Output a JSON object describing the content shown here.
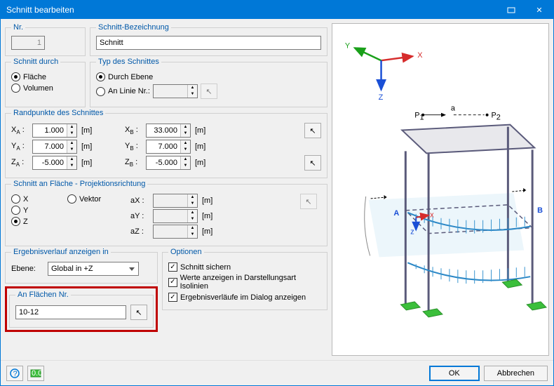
{
  "titlebar": {
    "title": "Schnitt bearbeiten",
    "close": "✕"
  },
  "nr": {
    "legend": "Nr.",
    "value": "1"
  },
  "bez": {
    "legend": "Schnitt-Bezeichnung",
    "value": "Schnitt"
  },
  "schnitt_durch": {
    "legend": "Schnitt durch",
    "opts": [
      {
        "label": "Fläche",
        "sel": true
      },
      {
        "label": "Volumen",
        "sel": false
      }
    ]
  },
  "typ": {
    "legend": "Typ des Schnittes",
    "opts": [
      {
        "label": "Durch Ebene",
        "sel": true
      },
      {
        "label": "An Linie Nr.:",
        "sel": false
      }
    ],
    "linie_value": ""
  },
  "randpunkte": {
    "legend": "Randpunkte des Schnittes",
    "a": [
      {
        "lbl": "X",
        "sub": "A",
        "val": "1.000",
        "unit": "[m]"
      },
      {
        "lbl": "Y",
        "sub": "A",
        "val": "7.000",
        "unit": "[m]"
      },
      {
        "lbl": "Z",
        "sub": "A",
        "val": "-5.000",
        "unit": "[m]"
      }
    ],
    "b": [
      {
        "lbl": "X",
        "sub": "B",
        "val": "33.000",
        "unit": "[m]"
      },
      {
        "lbl": "Y",
        "sub": "B",
        "val": "7.000",
        "unit": "[m]"
      },
      {
        "lbl": "Z",
        "sub": "B",
        "val": "-5.000",
        "unit": "[m]"
      }
    ]
  },
  "proj": {
    "legend": "Schnitt an Fläche - Projektionsrichtung",
    "xyz": [
      {
        "label": "X",
        "sel": false
      },
      {
        "label": "Y",
        "sel": false
      },
      {
        "label": "Z",
        "sel": true
      }
    ],
    "vektor": {
      "label": "Vektor",
      "sel": false
    },
    "axes": [
      {
        "lbl": "aX :",
        "unit": "[m]"
      },
      {
        "lbl": "aY :",
        "unit": "[m]"
      },
      {
        "lbl": "aZ :",
        "unit": "[m]"
      }
    ]
  },
  "erg": {
    "legend": "Ergebnisverlauf anzeigen in",
    "label": "Ebene:",
    "value": "Global in +Z"
  },
  "opt": {
    "legend": "Optionen",
    "items": [
      {
        "label": "Schnitt sichern",
        "sel": true
      },
      {
        "label": "Werte anzeigen in Darstellungsart Isolinien",
        "sel": true
      },
      {
        "label": "Ergebnisverläufe im Dialog anzeigen",
        "sel": true
      }
    ]
  },
  "flaechen": {
    "legend": "An Flächen Nr.",
    "value": "10-12"
  },
  "footer": {
    "ok": "OK",
    "cancel": "Abbrechen"
  },
  "preview": {
    "axis_x": "X",
    "axis_y": "Y",
    "axis_z": "Z",
    "p1": "P",
    "p1s": "1",
    "p2": "P",
    "p2s": "2",
    "a": "a",
    "labelA": "A",
    "labelB": "B",
    "small_x": "x",
    "small_z": "z",
    "colors": {
      "x": "#d62c2c",
      "y": "#1aa01a",
      "z": "#1a4fd6",
      "frame": "#5a5a7a",
      "plane": "#bde0ef",
      "edge": "#2a87c6",
      "hatch": "#3a95d0",
      "base": "#3bbf3b",
      "baseDark": "#2a8f2a",
      "cut": "#7fb8d4",
      "cutBrace": "#888"
    }
  }
}
